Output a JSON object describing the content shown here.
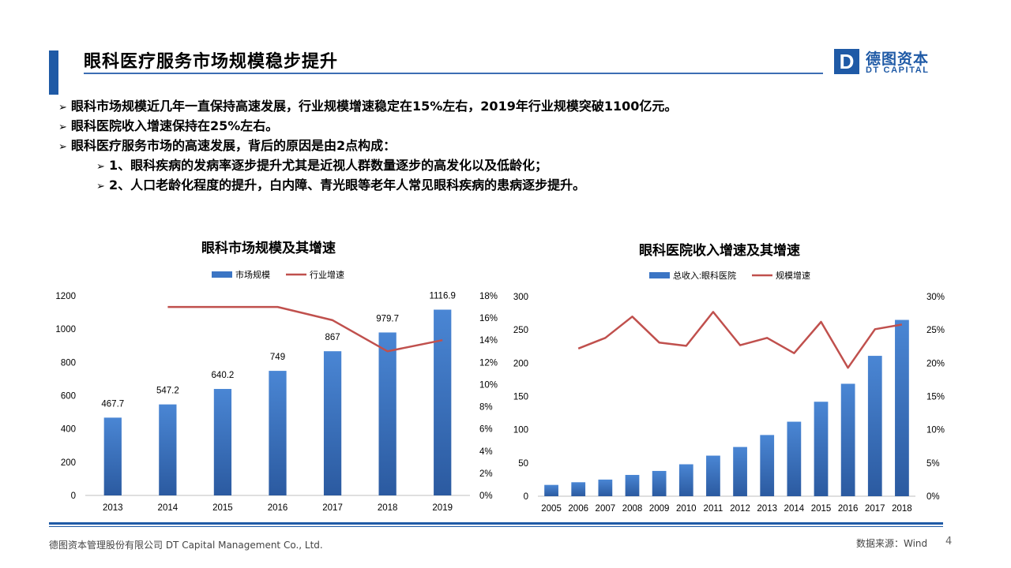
{
  "header": {
    "title": "眼科医疗服务市场规模稳步提升",
    "logo_mark": "D",
    "logo_cn": "德图资本",
    "logo_en": "DT CAPITAL"
  },
  "bullets": [
    {
      "text": "眼科市场规模近几年一直保持高速发展，行业规模增速稳定在15%左右，2019年行业规模突破1100亿元。",
      "level": 1
    },
    {
      "text": "眼科医院收入增速保持在25%左右。",
      "level": 1
    },
    {
      "text": "眼科医疗服务市场的高速发展，背后的原因是由2点构成：",
      "level": 1
    },
    {
      "text": "1、眼科疾病的发病率逐步提升尤其是近视人群数量逐步的高发化以及低龄化；",
      "level": 2
    },
    {
      "text": "2、人口老龄化程度的提升，白内障、青光眼等老年人常见眼科疾病的患病逐步提升。",
      "level": 2
    }
  ],
  "bullet_symbol": "➢",
  "chart_data": [
    {
      "type": "bar",
      "title": "眼科市场规模及其增速",
      "categories": [
        "2013",
        "2014",
        "2015",
        "2016",
        "2017",
        "2018",
        "2019"
      ],
      "series": [
        {
          "name": "市场规模",
          "type": "bar",
          "axis": "left",
          "color": "#3b75c4",
          "values": [
            467.7,
            547.2,
            640.2,
            749,
            867,
            979.7,
            1116.9
          ],
          "labels": [
            "467.7",
            "547.2",
            "640.2",
            "749",
            "867",
            "979.7",
            "1116.9"
          ]
        },
        {
          "name": "行业增速",
          "type": "line",
          "axis": "right",
          "color": "#c0504d",
          "values": [
            null,
            0.17,
            0.17,
            0.17,
            0.158,
            0.13,
            0.14
          ]
        }
      ],
      "ylim": [
        0,
        1200
      ],
      "yticks": [
        "0",
        "200",
        "400",
        "600",
        "800",
        "1000",
        "1200"
      ],
      "y2lim": [
        0,
        0.18
      ],
      "y2ticks": [
        "0%",
        "2%",
        "4%",
        "6%",
        "8%",
        "10%",
        "12%",
        "14%",
        "16%",
        "18%"
      ],
      "legend": "top"
    },
    {
      "type": "bar",
      "title": "眼科医院收入增速及其增速",
      "categories": [
        "2005",
        "2006",
        "2007",
        "2008",
        "2009",
        "2010",
        "2011",
        "2012",
        "2013",
        "2014",
        "2015",
        "2016",
        "2017",
        "2018"
      ],
      "series": [
        {
          "name": "总收入:眼科医院",
          "type": "bar",
          "axis": "left",
          "color": "#3b75c4",
          "values": [
            17,
            21,
            25,
            32,
            38,
            48,
            61,
            74,
            92,
            112,
            142,
            169,
            211,
            265
          ]
        },
        {
          "name": "规模增速",
          "type": "line",
          "axis": "right",
          "color": "#c0504d",
          "values": [
            null,
            0.222,
            0.238,
            0.27,
            0.231,
            0.226,
            0.277,
            0.227,
            0.238,
            0.215,
            0.262,
            0.193,
            0.251,
            0.258
          ]
        }
      ],
      "ylim": [
        0,
        300
      ],
      "yticks": [
        "0",
        "50",
        "100",
        "150",
        "200",
        "250",
        "300"
      ],
      "y2lim": [
        0,
        0.3
      ],
      "y2ticks": [
        "0%",
        "5%",
        "10%",
        "15%",
        "20%",
        "25%",
        "30%"
      ],
      "legend": "top"
    }
  ],
  "footer": {
    "company": "德图资本管理股份有限公司  DT Capital  Management  Co., Ltd.",
    "source": "数据来源：Wind",
    "page": "4"
  }
}
